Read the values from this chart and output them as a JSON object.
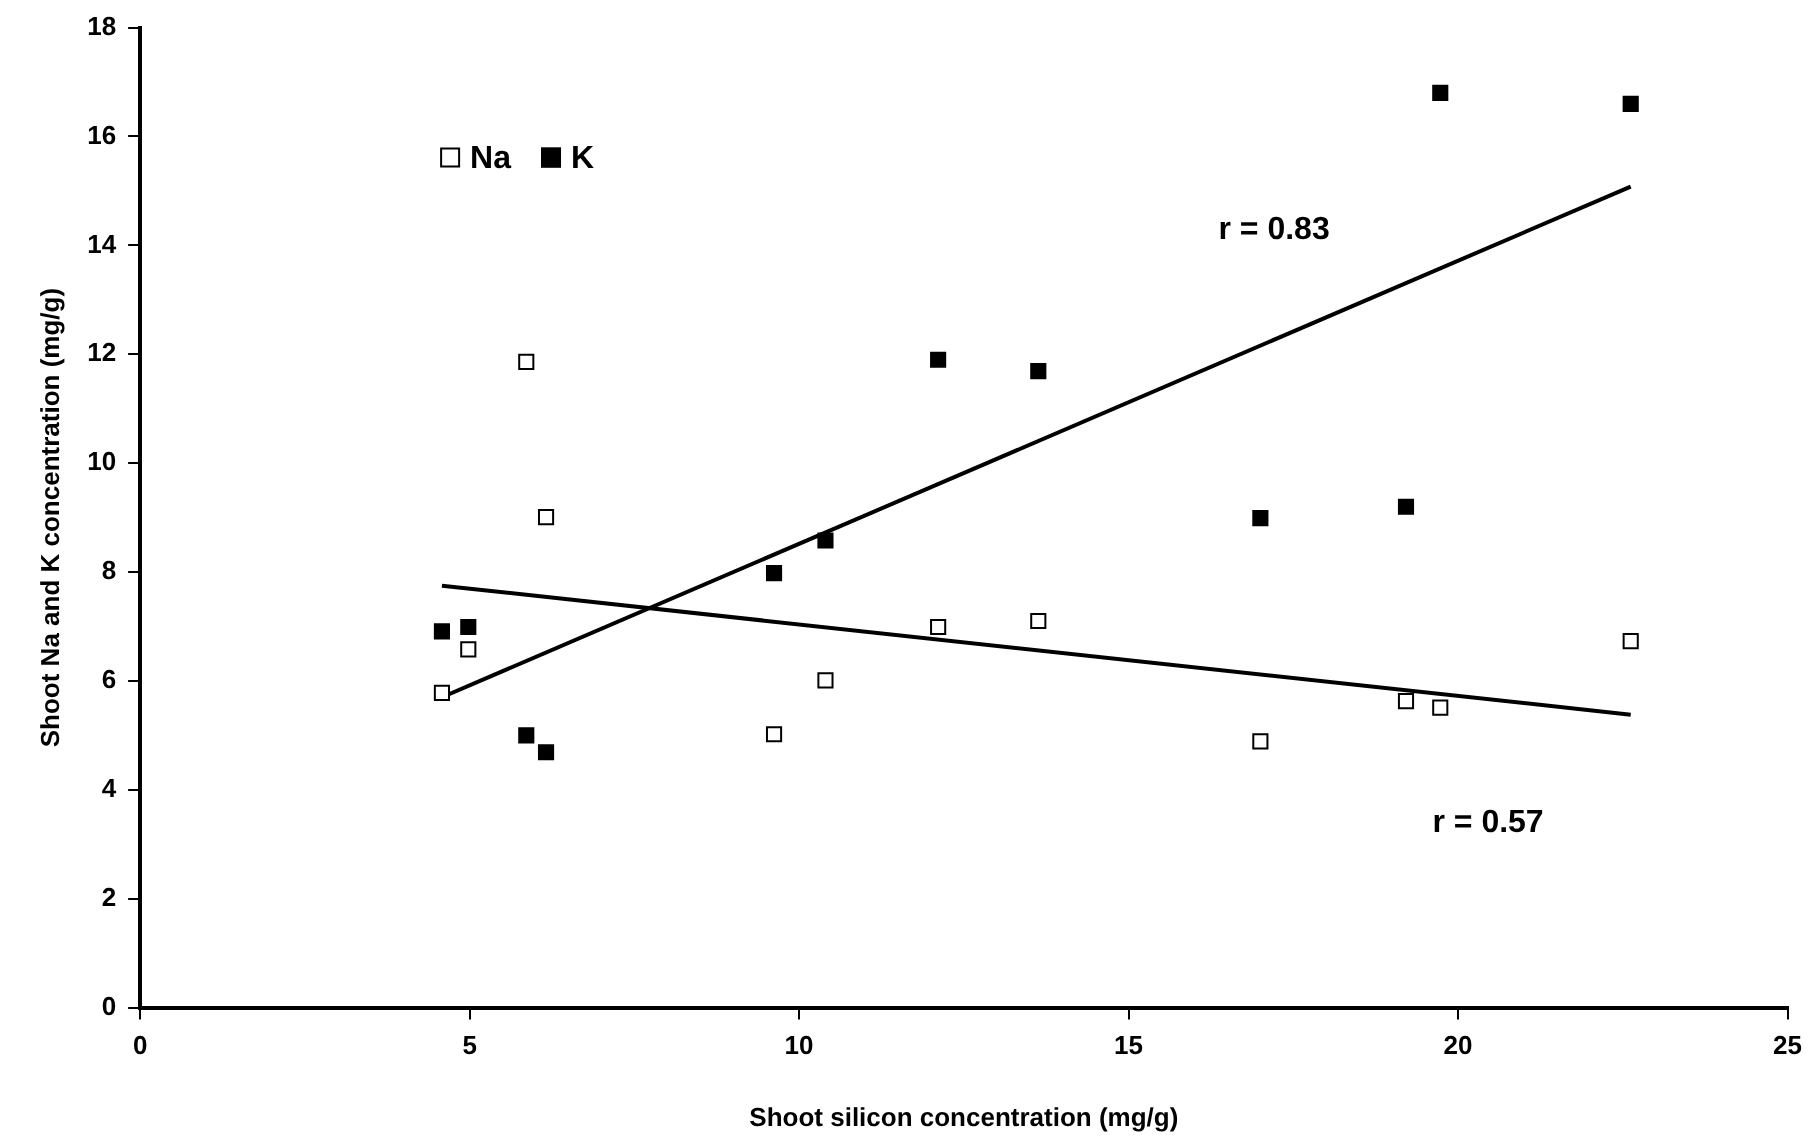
{
  "chart_data": {
    "type": "scatter",
    "xlabel": "Shoot silicon concentration (mg/g)",
    "ylabel": "Shoot Na and K concentration (mg/g)",
    "xlim": [
      0,
      25
    ],
    "xticks": [
      0,
      5,
      10,
      15,
      20,
      25
    ],
    "ylim": [
      0,
      18
    ],
    "yticks": [
      0,
      2,
      4,
      6,
      8,
      10,
      12,
      14,
      16,
      18
    ],
    "grid": false,
    "legend": "top left",
    "series": [
      {
        "name": "Na",
        "color": "#ffffff",
        "marker": "square",
        "x": [
          4.58,
          4.98,
          5.86,
          6.16,
          9.62,
          10.4,
          12.11,
          13.63,
          17.0,
          19.21,
          19.73,
          22.62
        ],
        "values": [
          5.78,
          6.58,
          11.86,
          9.01,
          5.02,
          6.01,
          6.99,
          7.1,
          4.89,
          5.63,
          5.51,
          6.73
        ]
      },
      {
        "name": "K",
        "color": "#000000",
        "marker": "square",
        "x": [
          4.58,
          4.98,
          5.86,
          6.16,
          9.62,
          10.4,
          12.11,
          13.63,
          17.0,
          19.21,
          19.73,
          22.62
        ],
        "values": [
          6.91,
          6.99,
          5.0,
          4.69,
          7.98,
          8.58,
          11.9,
          11.69,
          8.99,
          9.2,
          16.8,
          16.6
        ]
      },
      {
        "type": "line",
        "color": "#000000",
        "x": [
          4.58,
          22.62
        ],
        "values": [
          5.7,
          15.08
        ]
      },
      {
        "type": "line",
        "color": "#000000",
        "x": [
          4.58,
          22.62
        ],
        "values": [
          7.75,
          5.38
        ]
      }
    ],
    "annotations": [
      "r = 0.83",
      "r = 0.57"
    ]
  }
}
